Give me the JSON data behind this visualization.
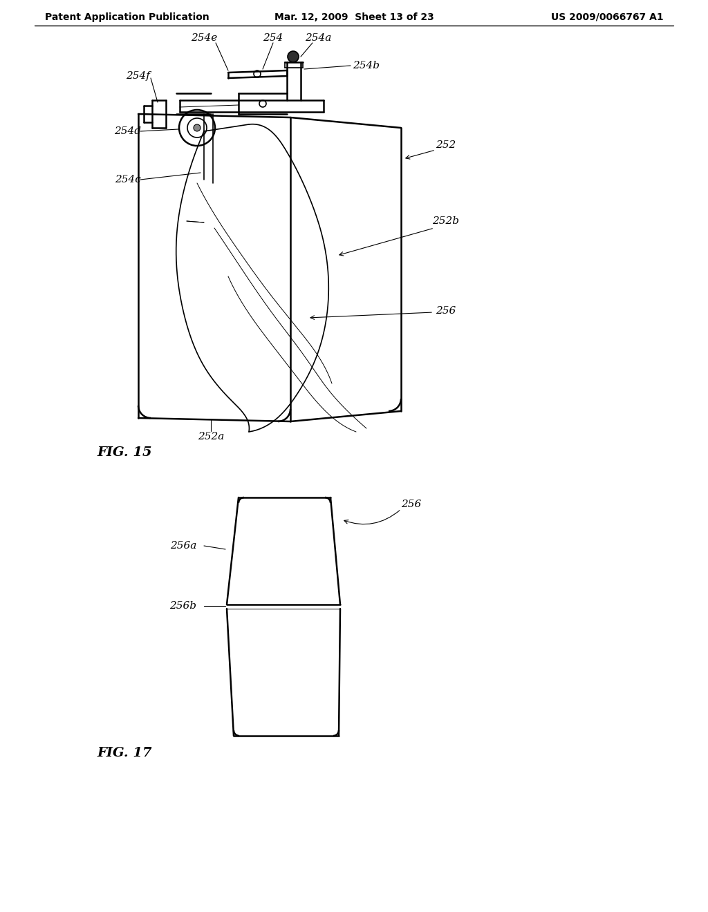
{
  "background_color": "#ffffff",
  "header_left": "Patent Application Publication",
  "header_center": "Mar. 12, 2009  Sheet 13 of 23",
  "header_right": "US 2009/0066767 A1",
  "fig15_label": "FIG. 15",
  "fig17_label": "FIG. 17",
  "line_color": "#000000",
  "text_color": "#000000",
  "font_size_header": 10,
  "font_size_label": 14,
  "font_size_ref": 11
}
